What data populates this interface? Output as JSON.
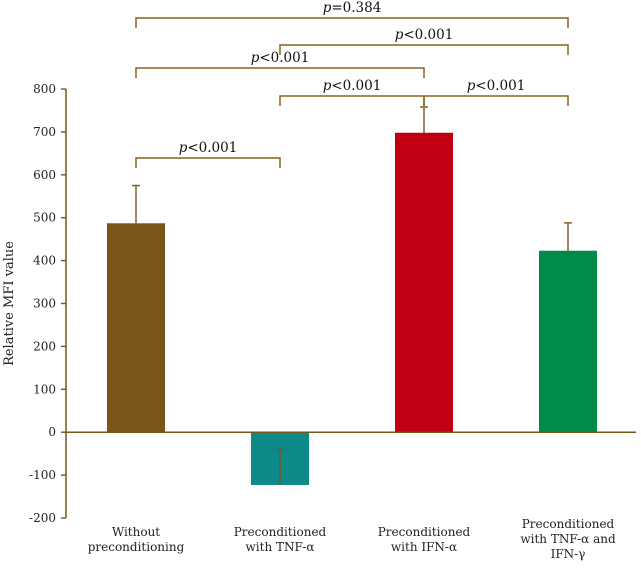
{
  "chart_data": {
    "type": "bar",
    "title": "",
    "xlabel": "",
    "ylabel": "Relative MFI value",
    "ylim": [
      -200,
      800
    ],
    "yticks": [
      -200,
      -100,
      0,
      100,
      200,
      300,
      400,
      500,
      600,
      700,
      800
    ],
    "ytick_labels": [
      "-200",
      "-100",
      "0",
      "100",
      "200",
      "300",
      "400",
      "500",
      "600",
      "700",
      "800"
    ],
    "categories": [
      [
        "Without",
        "preconditioning"
      ],
      [
        "Preconditioned",
        "with TNF-α"
      ],
      [
        "Preconditioned",
        "with IFN-α"
      ],
      [
        "Preconditioned",
        "with TNF-α and",
        "IFN-γ"
      ]
    ],
    "values": [
      487,
      -123,
      698,
      423
    ],
    "errors": [
      88,
      83,
      60,
      65
    ],
    "colors": [
      "#7a5518",
      "#0f8a8a",
      "#c00012",
      "#008a4a"
    ],
    "comparisons": [
      {
        "from": 0,
        "to": 3,
        "p_prefix": "p",
        "p_value": "=0.384",
        "level": 5
      },
      {
        "from": 1,
        "to": 3,
        "p_prefix": "p",
        "p_value": "<0.001",
        "level": 4
      },
      {
        "from": 0,
        "to": 2,
        "p_prefix": "p",
        "p_value": "<0.001",
        "level": 3
      },
      {
        "from": 1,
        "to": 2,
        "p_prefix": "p",
        "p_value": "<0.001",
        "level": 2
      },
      {
        "from": 2,
        "to": 3,
        "p_prefix": "p",
        "p_value": "<0.001",
        "level": 2
      },
      {
        "from": 0,
        "to": 1,
        "p_prefix": "p",
        "p_value": "<0.001",
        "level": 1
      }
    ],
    "colors_meta": {
      "axis": "#7a5518",
      "bracket": "#8a6418",
      "error": "#7a5518"
    }
  }
}
